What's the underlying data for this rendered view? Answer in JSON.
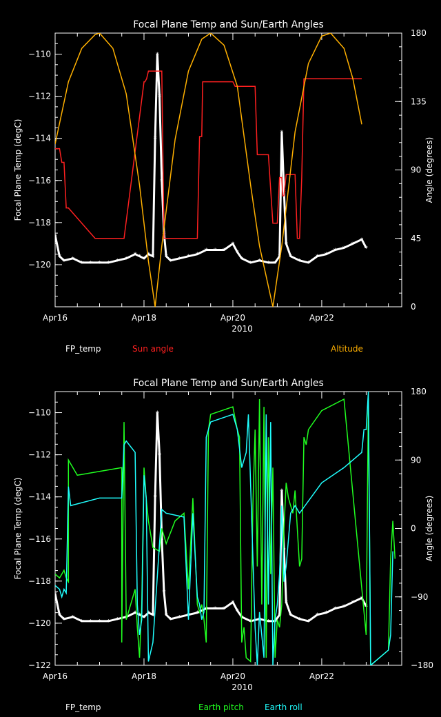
{
  "chart_data": [
    {
      "type": "line",
      "title": "Focal Plane Temp and Sun/Earth Angles",
      "xlabel": "2010",
      "ylabel": "Focal Plane Temp (degC)",
      "y2label": "Angle (degrees)",
      "xlim": [
        16,
        23.8
      ],
      "ylim": [
        -122,
        -109
      ],
      "y2lim": [
        0,
        180
      ],
      "x_ticks": [
        {
          "v": 16,
          "label": "Apr16"
        },
        {
          "v": 18,
          "label": "Apr18"
        },
        {
          "v": 20,
          "label": "Apr20"
        },
        {
          "v": 22,
          "label": "Apr22"
        }
      ],
      "y_ticks": [
        -120,
        -118,
        -116,
        -114,
        -112,
        -110
      ],
      "y_tick_labels": [
        "−120",
        "−118",
        "−116",
        "−114",
        "−112",
        "−110"
      ],
      "y2_ticks": [
        0,
        45,
        90,
        135,
        180
      ],
      "y2_tick_labels": [
        "0",
        "45",
        "90",
        "135",
        "180"
      ],
      "legend": [
        {
          "name": "FP_temp",
          "color": "#ffffff"
        },
        {
          "name": "Sun angle",
          "color": "#ff2020"
        },
        {
          "name": "Altitude",
          "color": "#ffb000"
        }
      ],
      "series": [
        {
          "name": "FP_temp",
          "color": "#ffffff",
          "axis": "left",
          "style": "marker",
          "x": [
            16.0,
            16.1,
            16.2,
            16.4,
            16.6,
            16.8,
            17.0,
            17.2,
            17.4,
            17.6,
            17.8,
            17.9,
            18.0,
            18.1,
            18.2,
            18.25,
            18.3,
            18.35,
            18.4,
            18.45,
            18.5,
            18.6,
            18.8,
            19.0,
            19.2,
            19.4,
            19.6,
            19.8,
            20.0,
            20.1,
            20.2,
            20.4,
            20.6,
            20.8,
            20.95,
            21.05,
            21.1,
            21.15,
            21.2,
            21.3,
            21.5,
            21.7,
            21.9,
            22.1,
            22.3,
            22.5,
            22.7,
            22.9,
            23.0
          ],
          "y": [
            -118.6,
            -119.6,
            -119.8,
            -119.7,
            -119.9,
            -119.9,
            -119.9,
            -119.9,
            -119.8,
            -119.7,
            -119.5,
            -119.6,
            -119.7,
            -119.5,
            -119.6,
            -114.0,
            -110.0,
            -112.0,
            -116.0,
            -118.5,
            -119.6,
            -119.8,
            -119.7,
            -119.6,
            -119.5,
            -119.3,
            -119.3,
            -119.3,
            -119.0,
            -119.4,
            -119.7,
            -119.9,
            -119.8,
            -119.9,
            -119.9,
            -119.6,
            -113.7,
            -116.5,
            -119.0,
            -119.6,
            -119.8,
            -119.9,
            -119.6,
            -119.5,
            -119.3,
            -119.2,
            -119.0,
            -118.8,
            -119.2
          ]
        },
        {
          "name": "Sun angle",
          "color": "#ff2020",
          "axis": "right",
          "style": "line",
          "x": [
            16.0,
            16.1,
            16.15,
            16.2,
            16.25,
            16.3,
            16.9,
            17.5,
            17.55,
            18.0,
            18.02,
            18.06,
            18.1,
            18.15,
            18.2,
            18.4,
            18.45,
            18.9,
            18.92,
            19.2,
            19.25,
            19.3,
            19.32,
            20.0,
            20.05,
            20.5,
            20.55,
            20.8,
            20.9,
            21.0,
            21.05,
            21.1,
            21.12,
            21.15,
            21.2,
            21.4,
            21.45,
            21.5,
            21.55,
            21.6,
            22.9
          ],
          "y": [
            104,
            104,
            95,
            95,
            65,
            65,
            45,
            45,
            45,
            148,
            148,
            150,
            155,
            155,
            155,
            155,
            45,
            45,
            45,
            45,
            112,
            112,
            148,
            148,
            145,
            145,
            100,
            100,
            55,
            55,
            85,
            85,
            73,
            73,
            87,
            87,
            45,
            45,
            85,
            150,
            150
          ]
        },
        {
          "name": "Altitude",
          "color": "#ffb000",
          "axis": "right",
          "style": "line",
          "x": [
            16.0,
            16.3,
            16.6,
            16.9,
            17.0,
            17.3,
            17.6,
            17.9,
            18.1,
            18.25,
            18.4,
            18.7,
            19.0,
            19.3,
            19.5,
            19.8,
            20.1,
            20.4,
            20.6,
            20.9,
            21.1,
            21.4,
            21.7,
            22.0,
            22.2,
            22.5,
            22.7,
            22.9
          ],
          "y": [
            107,
            148,
            170,
            179,
            180,
            170,
            140,
            80,
            30,
            0,
            40,
            110,
            155,
            176,
            180,
            172,
            145,
            80,
            40,
            0,
            40,
            115,
            160,
            178,
            180,
            170,
            150,
            120
          ]
        }
      ]
    },
    {
      "type": "line",
      "title": "Focal Plane Temp and Sun/Earth Angles",
      "xlabel": "2010",
      "ylabel": "Focal Plane Temp (degC)",
      "y2label": "Angle (degrees)",
      "xlim": [
        16,
        23.8
      ],
      "ylim": [
        -122,
        -109
      ],
      "y2lim": [
        -180,
        180
      ],
      "x_ticks": [
        {
          "v": 16,
          "label": "Apr16"
        },
        {
          "v": 18,
          "label": "Apr18"
        },
        {
          "v": 20,
          "label": "Apr20"
        },
        {
          "v": 22,
          "label": "Apr22"
        }
      ],
      "y_ticks": [
        -122,
        -120,
        -118,
        -116,
        -114,
        -112,
        -110
      ],
      "y_tick_labels": [
        "−122",
        "−120",
        "−118",
        "−116",
        "−114",
        "−112",
        "−110"
      ],
      "y2_ticks": [
        -180,
        -90,
        0,
        90,
        180
      ],
      "y2_tick_labels": [
        "−180",
        "−90",
        "0",
        "90",
        "180"
      ],
      "legend": [
        {
          "name": "FP_temp",
          "color": "#ffffff"
        },
        {
          "name": "Earth pitch",
          "color": "#20ff20"
        },
        {
          "name": "Earth roll",
          "color": "#20ffff"
        }
      ],
      "series": [
        {
          "name": "FP_temp",
          "color": "#ffffff",
          "axis": "left",
          "style": "marker",
          "x": [
            16.0,
            16.1,
            16.2,
            16.4,
            16.6,
            16.8,
            17.0,
            17.2,
            17.4,
            17.6,
            17.8,
            17.9,
            18.0,
            18.1,
            18.2,
            18.25,
            18.3,
            18.35,
            18.4,
            18.45,
            18.5,
            18.6,
            18.8,
            19.0,
            19.2,
            19.4,
            19.6,
            19.8,
            20.0,
            20.1,
            20.2,
            20.4,
            20.6,
            20.8,
            20.95,
            21.05,
            21.1,
            21.15,
            21.2,
            21.3,
            21.5,
            21.7,
            21.9,
            22.1,
            22.3,
            22.5,
            22.7,
            22.9,
            23.0
          ],
          "y": [
            -118.6,
            -119.6,
            -119.8,
            -119.7,
            -119.9,
            -119.9,
            -119.9,
            -119.9,
            -119.8,
            -119.7,
            -119.5,
            -119.6,
            -119.7,
            -119.5,
            -119.6,
            -114.0,
            -110.0,
            -112.0,
            -116.0,
            -118.5,
            -119.6,
            -119.8,
            -119.7,
            -119.6,
            -119.5,
            -119.3,
            -119.3,
            -119.3,
            -119.0,
            -119.4,
            -119.7,
            -119.9,
            -119.8,
            -119.9,
            -119.9,
            -119.6,
            -113.7,
            -116.5,
            -119.0,
            -119.6,
            -119.8,
            -119.9,
            -119.6,
            -119.5,
            -119.3,
            -119.2,
            -119.0,
            -118.8,
            -119.2
          ]
        },
        {
          "name": "Earth pitch",
          "color": "#20ff20",
          "axis": "right",
          "style": "line",
          "x": [
            16.0,
            16.1,
            16.15,
            16.2,
            16.25,
            16.3,
            16.3,
            16.5,
            17.0,
            17.5,
            17.5,
            17.55,
            17.6,
            17.8,
            17.85,
            17.9,
            17.95,
            18.0,
            18.05,
            18.1,
            18.2,
            18.35,
            18.4,
            18.5,
            18.7,
            18.9,
            19.0,
            19.1,
            19.2,
            19.25,
            19.3,
            19.35,
            19.4,
            19.45,
            19.5,
            20.0,
            20.1,
            20.15,
            20.2,
            20.25,
            20.3,
            20.4,
            20.45,
            20.5,
            20.55,
            20.6,
            20.65,
            20.7,
            20.75,
            20.8,
            20.85,
            20.9,
            20.95,
            21.0,
            21.05,
            21.1,
            21.15,
            21.2,
            21.25,
            21.3,
            21.35,
            21.4,
            21.5,
            21.55,
            21.6,
            21.65,
            21.7,
            22.0,
            22.5,
            23.0,
            23.05,
            23.1,
            23.5,
            23.55,
            23.6,
            23.65
          ],
          "y": [
            -60,
            -65,
            -60,
            -55,
            -65,
            -70,
            90,
            70,
            75,
            80,
            -150,
            140,
            -120,
            -80,
            -130,
            -170,
            -100,
            80,
            40,
            10,
            -25,
            -30,
            0,
            -20,
            10,
            20,
            -80,
            40,
            -100,
            -110,
            -100,
            -120,
            -150,
            130,
            150,
            160,
            130,
            120,
            -150,
            -130,
            -170,
            -175,
            30,
            130,
            -50,
            170,
            -100,
            160,
            -170,
            120,
            -60,
            80,
            -170,
            -120,
            -130,
            -100,
            0,
            60,
            40,
            30,
            20,
            50,
            -50,
            -40,
            120,
            110,
            130,
            155,
            170,
            -140,
            170,
            -180,
            -160,
            -40,
            10,
            -40
          ]
        },
        {
          "name": "Earth roll",
          "color": "#20ffff",
          "axis": "right",
          "style": "line",
          "x": [
            16.0,
            16.1,
            16.15,
            16.2,
            16.25,
            16.3,
            16.35,
            17.0,
            17.5,
            17.55,
            17.6,
            17.8,
            17.85,
            17.9,
            17.95,
            18.0,
            18.05,
            18.1,
            18.2,
            18.4,
            18.5,
            18.9,
            19.0,
            19.1,
            19.2,
            19.25,
            19.3,
            19.35,
            19.4,
            19.45,
            19.5,
            20.0,
            20.05,
            20.1,
            20.2,
            20.3,
            20.35,
            20.5,
            20.55,
            20.6,
            20.7,
            20.75,
            20.8,
            20.85,
            20.9,
            20.95,
            21.0,
            21.05,
            21.1,
            21.15,
            21.2,
            21.3,
            21.4,
            21.5,
            22.0,
            22.5,
            22.9,
            22.95,
            23.0,
            23.05,
            23.1,
            23.5,
            23.55,
            23.6
          ],
          "y": [
            -75,
            -80,
            -90,
            -80,
            -85,
            55,
            30,
            40,
            40,
            110,
            115,
            100,
            -100,
            -140,
            -120,
            70,
            40,
            -175,
            -150,
            25,
            20,
            15,
            -120,
            20,
            -90,
            -100,
            -120,
            -110,
            120,
            130,
            140,
            150,
            140,
            130,
            80,
            100,
            150,
            -130,
            -180,
            -110,
            -170,
            150,
            -100,
            140,
            -180,
            -120,
            -100,
            -60,
            30,
            -70,
            -50,
            20,
            30,
            20,
            60,
            80,
            100,
            130,
            130,
            180,
            -180,
            -160,
            -140,
            -30
          ]
        }
      ]
    }
  ]
}
